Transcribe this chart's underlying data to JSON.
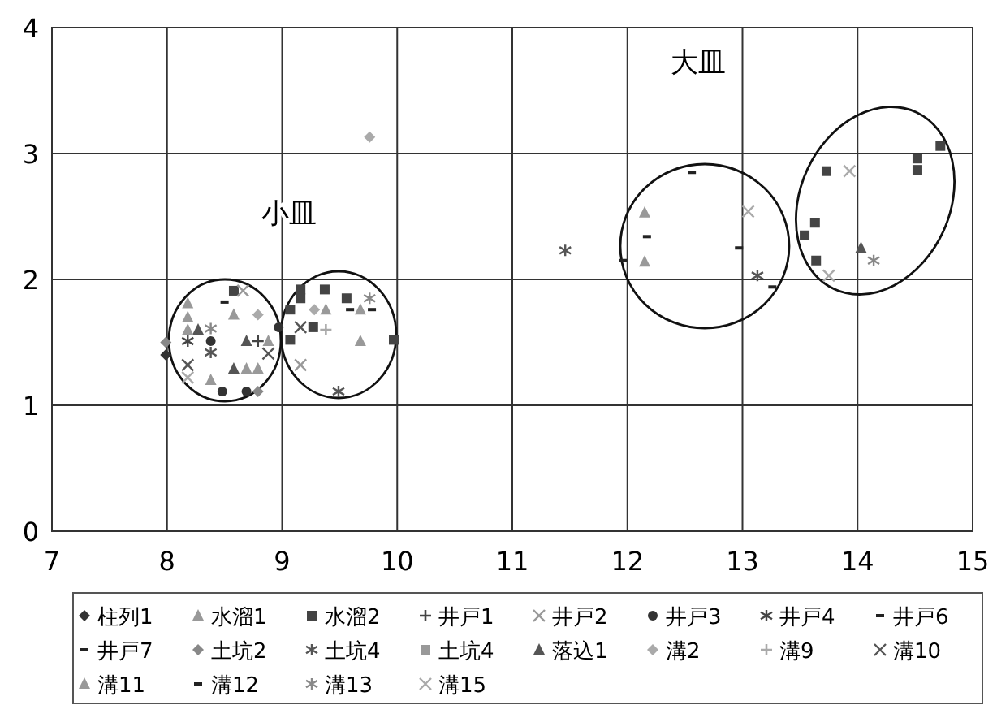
{
  "chart_data": {
    "type": "scatter",
    "xlim": [
      7,
      15
    ],
    "ylim": [
      0,
      4
    ],
    "xticks": [
      7,
      8,
      9,
      10,
      11,
      12,
      13,
      14,
      15
    ],
    "yticks": [
      0,
      1,
      2,
      3,
      4
    ],
    "grid": true,
    "legend": "bottom",
    "annotations": [
      "小皿",
      "大皿"
    ],
    "series": [
      {
        "name": "柱列1",
        "color": "#333333",
        "marker": "diamond",
        "x": [
          7.99
        ],
        "values": [
          1.4
        ]
      },
      {
        "name": "水溜1",
        "color": "#999999",
        "marker": "triangle",
        "x": [
          8.18,
          8.58,
          8.18,
          9.38,
          12.15
        ],
        "values": [
          1.81,
          1.72,
          1.7,
          1.76,
          2.53
        ]
      },
      {
        "name": "水溜2",
        "color": "#444444",
        "marker": "square",
        "x": [
          8.58,
          9.16,
          9.37,
          9.16,
          9.56,
          9.07,
          9.27,
          9.07,
          9.97,
          13.73,
          14.52,
          14.52,
          14.72,
          13.63,
          13.54,
          13.64
        ],
        "values": [
          1.91,
          1.92,
          1.92,
          1.85,
          1.85,
          1.76,
          1.62,
          1.52,
          1.52,
          2.86,
          2.96,
          2.87,
          3.06,
          2.45,
          2.35,
          2.15
        ]
      },
      {
        "name": "井戸1",
        "color": "#444444",
        "marker": "plus",
        "x": [
          8.79
        ],
        "values": [
          1.51
        ]
      },
      {
        "name": "井戸2",
        "color": "#999999",
        "marker": "x",
        "x": [
          8.66,
          9.16
        ],
        "values": [
          1.91,
          1.32
        ]
      },
      {
        "name": "井戸3",
        "color": "#333333",
        "marker": "circle",
        "x": [
          8.38,
          8.48,
          8.69,
          8.97
        ],
        "values": [
          1.51,
          1.11,
          1.11,
          1.62
        ]
      },
      {
        "name": "井戸4",
        "color": "#444444",
        "marker": "cross",
        "x": [
          8.18
        ],
        "values": [
          1.51
        ]
      },
      {
        "name": "井戸6",
        "color": "#222222",
        "x": [
          8.5,
          12.56
        ],
        "values": [
          1.82,
          2.85
        ]
      },
      {
        "name": "井戸7",
        "color": "#222222",
        "x": [
          11.96,
          12.97
        ],
        "values": [
          2.15,
          2.25
        ]
      },
      {
        "name": "土坑2",
        "color": "#888888",
        "marker": "diamond",
        "x": [
          8.79,
          7.99
        ],
        "values": [
          1.11,
          1.5
        ]
      },
      {
        "name": "土坑4",
        "color": "#555555",
        "marker": "cross",
        "x": [
          8.38,
          9.49,
          11.46,
          13.13
        ],
        "values": [
          1.42,
          1.11,
          2.23,
          2.03
        ]
      },
      {
        "name": "土坑4",
        "color": "#999999",
        "marker": "square"
      },
      {
        "name": "落込1",
        "color": "#555555",
        "marker": "triangle",
        "x": [
          8.27,
          8.69,
          14.03,
          8.58
        ],
        "values": [
          1.6,
          1.51,
          2.25,
          1.29
        ]
      },
      {
        "name": "溝2",
        "color": "#aaaaaa",
        "marker": "diamond",
        "x": [
          8.79,
          9.28,
          9.76
        ],
        "values": [
          1.72,
          1.76,
          3.13
        ]
      },
      {
        "name": "溝9",
        "color": "#aaaaaa",
        "marker": "plus",
        "x": [
          9.38
        ],
        "values": [
          1.6
        ]
      },
      {
        "name": "溝10",
        "color": "#555555",
        "marker": "x",
        "x": [
          8.88,
          9.16,
          8.18
        ],
        "values": [
          1.41,
          1.62,
          1.32
        ]
      },
      {
        "name": "溝11",
        "color": "#999999",
        "marker": "triangle",
        "x": [
          8.18,
          8.88,
          8.69,
          8.79,
          8.38,
          9.68,
          9.68,
          12.15
        ],
        "values": [
          1.6,
          1.51,
          1.29,
          1.29,
          1.2,
          1.76,
          1.51,
          2.14
        ]
      },
      {
        "name": "溝12",
        "color": "#222222",
        "x": [
          9.59,
          9.78,
          12.17,
          13.26
        ],
        "values": [
          1.76,
          1.76,
          2.34,
          1.94
        ]
      },
      {
        "name": "溝13",
        "color": "#888888",
        "marker": "cross",
        "x": [
          8.38,
          9.76,
          14.14
        ],
        "values": [
          1.61,
          1.85,
          2.15
        ]
      },
      {
        "name": "溝15",
        "color": "#aaaaaa",
        "marker": "x",
        "x": [
          8.18,
          13.05,
          13.93,
          13.75
        ],
        "values": [
          1.22,
          2.54,
          2.86,
          2.03
        ]
      }
    ]
  }
}
